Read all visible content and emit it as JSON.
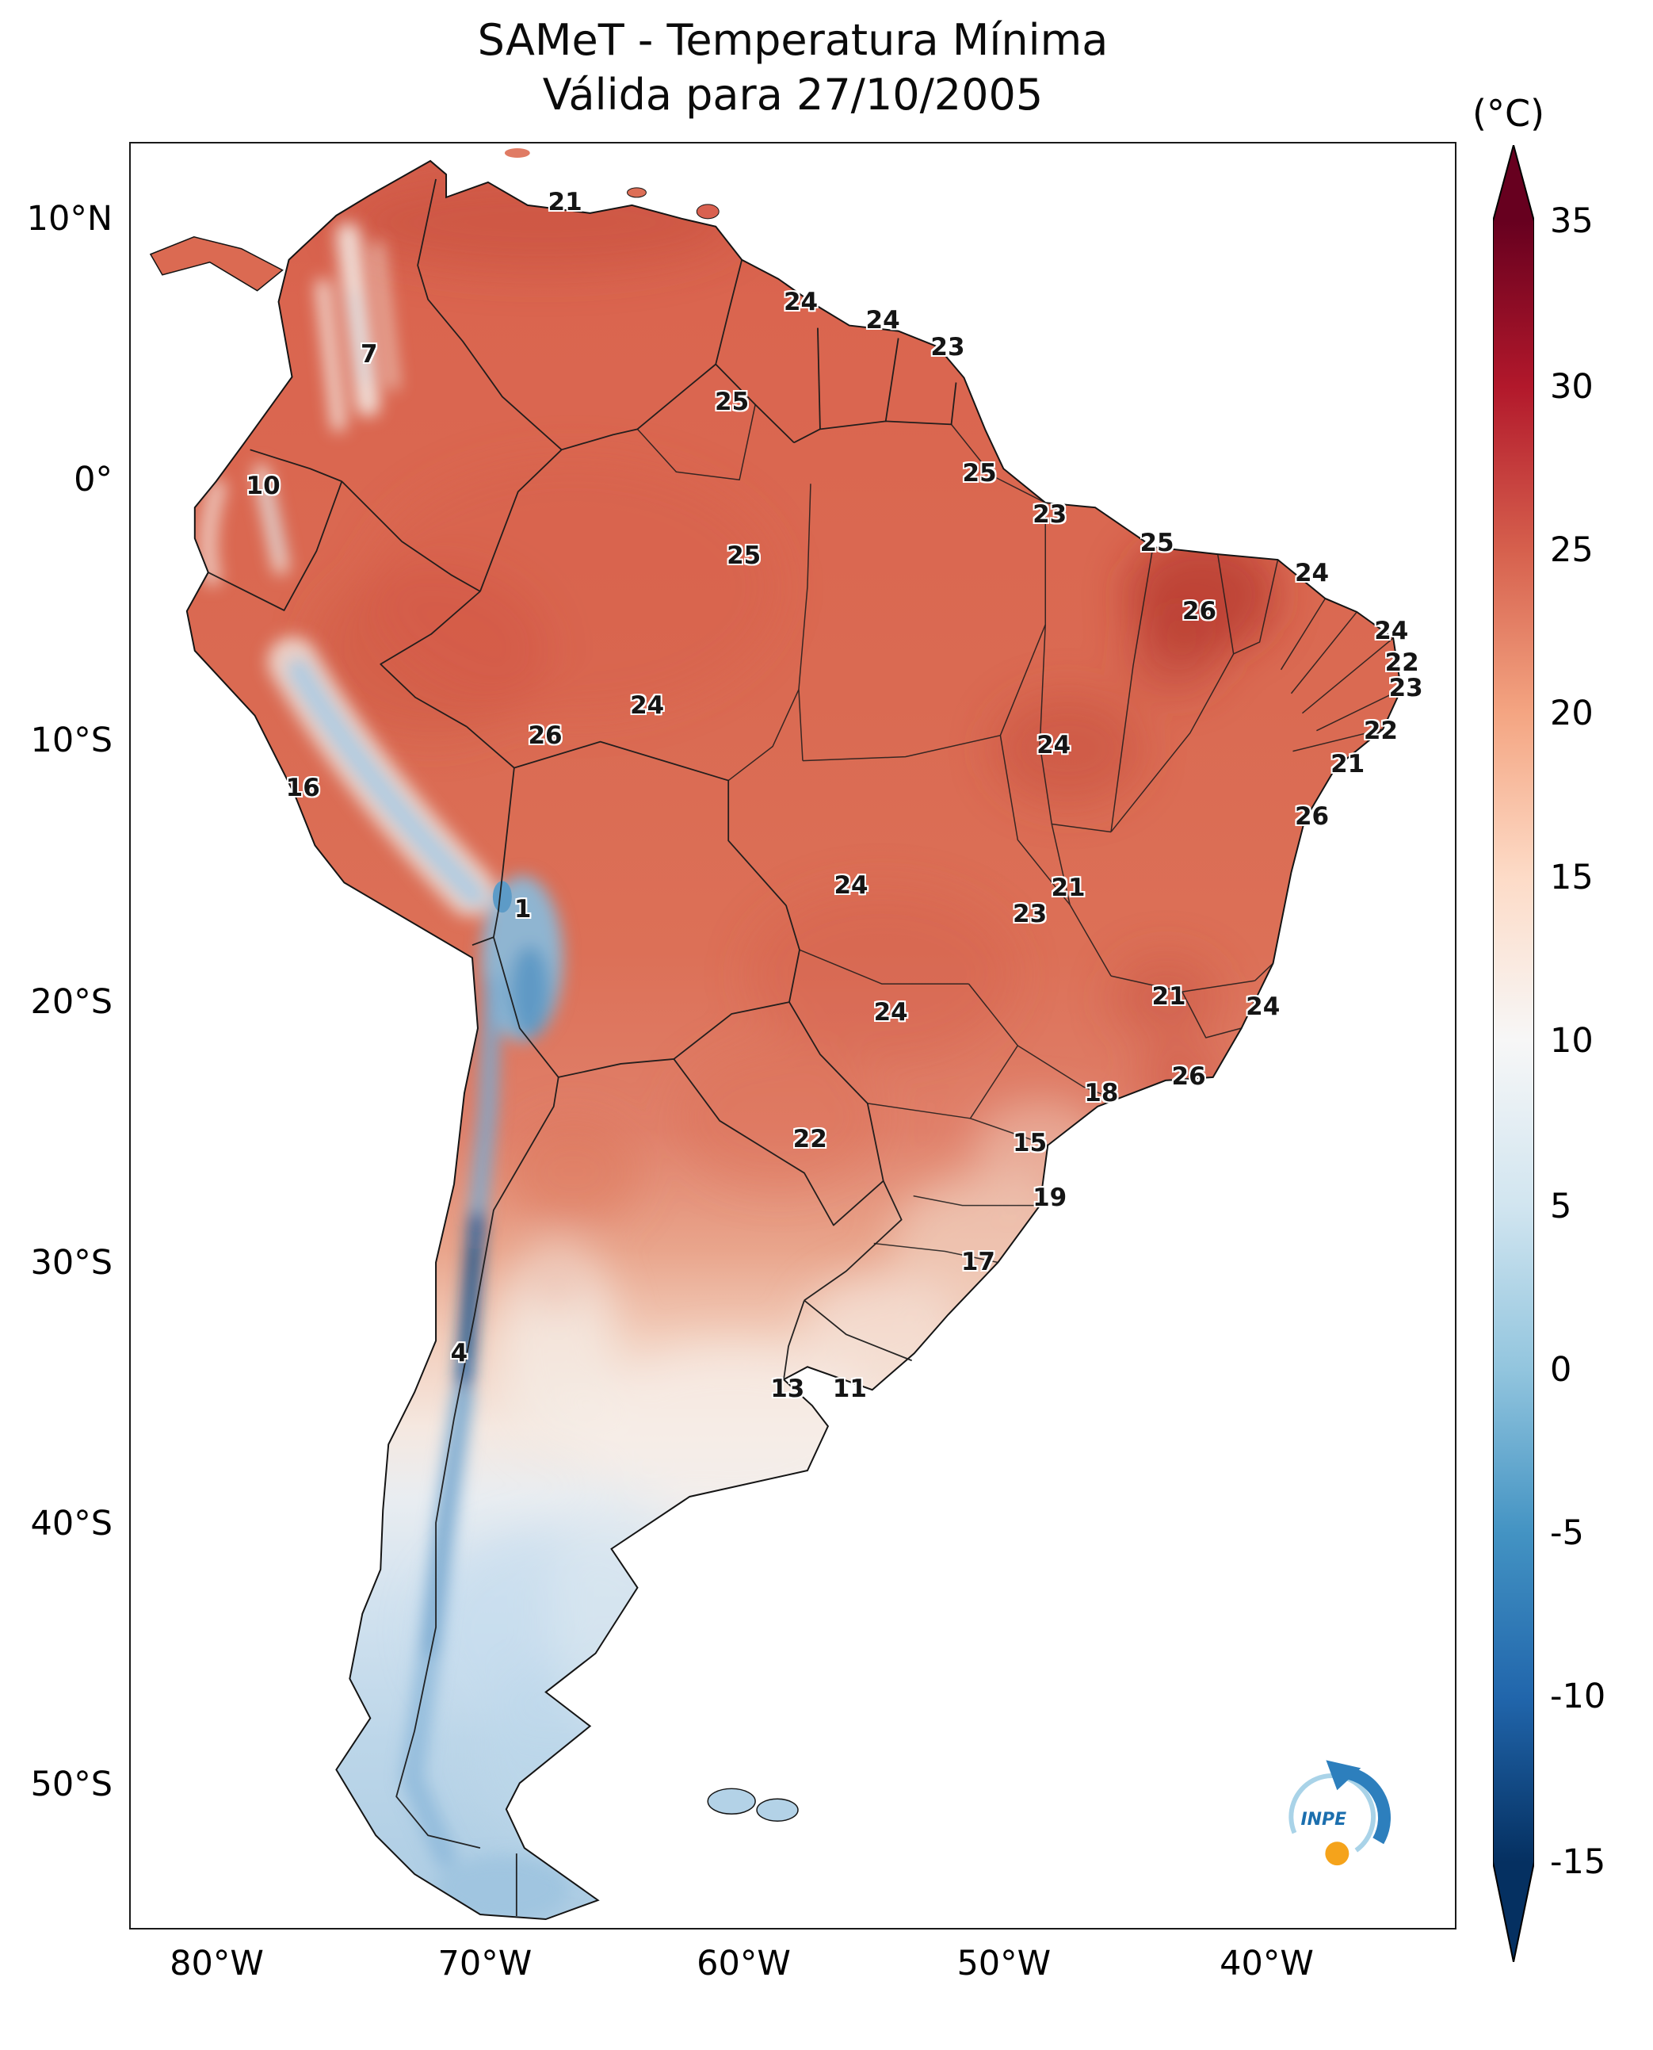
{
  "title": {
    "line1": "SAMeT - Temperatura Mínima",
    "line2": "Válida para 27/10/2005"
  },
  "colorbar": {
    "unit_label": "(°C)",
    "ticks": [
      {
        "label": "35",
        "pos_pct": 4.2
      },
      {
        "label": "30",
        "pos_pct": 13.3
      },
      {
        "label": "25",
        "pos_pct": 22.3
      },
      {
        "label": "20",
        "pos_pct": 31.3
      },
      {
        "label": "15",
        "pos_pct": 40.3
      },
      {
        "label": "10",
        "pos_pct": 49.3
      },
      {
        "label": "5",
        "pos_pct": 58.4
      },
      {
        "label": "0",
        "pos_pct": 67.4
      },
      {
        "label": "-5",
        "pos_pct": 76.4
      },
      {
        "label": "-10",
        "pos_pct": 85.4
      },
      {
        "label": "-15",
        "pos_pct": 94.5
      }
    ],
    "gradient_stops": [
      {
        "color": "#67001f",
        "pos_pct": 0
      },
      {
        "color": "#67001f",
        "pos_pct": 4.2
      },
      {
        "color": "#b2182b",
        "pos_pct": 13.3
      },
      {
        "color": "#d6604d",
        "pos_pct": 22.3
      },
      {
        "color": "#f4a582",
        "pos_pct": 31.3
      },
      {
        "color": "#fddbc7",
        "pos_pct": 40.3
      },
      {
        "color": "#f7f7f7",
        "pos_pct": 49.3
      },
      {
        "color": "#d1e5f0",
        "pos_pct": 58.4
      },
      {
        "color": "#92c5de",
        "pos_pct": 67.4
      },
      {
        "color": "#4393c3",
        "pos_pct": 76.4
      },
      {
        "color": "#2166ac",
        "pos_pct": 85.4
      },
      {
        "color": "#053061",
        "pos_pct": 94.5
      },
      {
        "color": "#053061",
        "pos_pct": 100
      }
    ]
  },
  "axes": {
    "x_ticks": [
      {
        "label": "80°W",
        "x_pct": 6.6
      },
      {
        "label": "70°W",
        "x_pct": 26.8
      },
      {
        "label": "60°W",
        "x_pct": 46.3
      },
      {
        "label": "50°W",
        "x_pct": 65.9
      },
      {
        "label": "40°W",
        "x_pct": 85.7
      }
    ],
    "y_ticks": [
      {
        "label": "10°N",
        "y_pct": 4.3
      },
      {
        "label": "0°",
        "y_pct": 18.9
      },
      {
        "label": "10°S",
        "y_pct": 33.5
      },
      {
        "label": "20°S",
        "y_pct": 48.1
      },
      {
        "label": "30°S",
        "y_pct": 62.7
      },
      {
        "label": "40°S",
        "y_pct": 77.3
      },
      {
        "label": "50°S",
        "y_pct": 91.9
      }
    ]
  },
  "logo": {
    "text": "INPE"
  },
  "chart_data": {
    "type": "heatmap",
    "title": "SAMeT - Temperatura Mínima",
    "subtitle": "Válida para 27/10/2005",
    "unit": "°C",
    "colorbar_range": [
      -15,
      35
    ],
    "colorbar_ticks": [
      35,
      30,
      25,
      20,
      15,
      10,
      5,
      0,
      -5,
      -10,
      -15
    ],
    "x_axis_ticks": [
      "80°W",
      "70°W",
      "60°W",
      "50°W",
      "40°W"
    ],
    "y_axis_ticks": [
      "10°N",
      "0°",
      "10°S",
      "20°S",
      "30°S",
      "40°S",
      "50°S"
    ],
    "station_values": [
      {
        "value": "21",
        "x_pct": 32.8,
        "y_pct": 3.3
      },
      {
        "value": "24",
        "x_pct": 50.6,
        "y_pct": 8.9
      },
      {
        "value": "24",
        "x_pct": 56.8,
        "y_pct": 9.9
      },
      {
        "value": "23",
        "x_pct": 61.7,
        "y_pct": 11.4
      },
      {
        "value": "7",
        "x_pct": 18.0,
        "y_pct": 11.8
      },
      {
        "value": "25",
        "x_pct": 45.4,
        "y_pct": 14.5
      },
      {
        "value": "25",
        "x_pct": 64.1,
        "y_pct": 18.5
      },
      {
        "value": "10",
        "x_pct": 10.0,
        "y_pct": 19.2
      },
      {
        "value": "23",
        "x_pct": 69.4,
        "y_pct": 20.8
      },
      {
        "value": "25",
        "x_pct": 77.5,
        "y_pct": 22.4
      },
      {
        "value": "25",
        "x_pct": 46.3,
        "y_pct": 23.1
      },
      {
        "value": "24",
        "x_pct": 89.2,
        "y_pct": 24.1
      },
      {
        "value": "26",
        "x_pct": 80.7,
        "y_pct": 26.2
      },
      {
        "value": "24",
        "x_pct": 95.2,
        "y_pct": 27.3
      },
      {
        "value": "22",
        "x_pct": 96.0,
        "y_pct": 29.1
      },
      {
        "value": "23",
        "x_pct": 96.3,
        "y_pct": 30.5
      },
      {
        "value": "24",
        "x_pct": 39.0,
        "y_pct": 31.5
      },
      {
        "value": "26",
        "x_pct": 31.3,
        "y_pct": 33.2
      },
      {
        "value": "22",
        "x_pct": 94.4,
        "y_pct": 32.9
      },
      {
        "value": "24",
        "x_pct": 69.7,
        "y_pct": 33.7
      },
      {
        "value": "21",
        "x_pct": 91.9,
        "y_pct": 34.8
      },
      {
        "value": "16",
        "x_pct": 13.0,
        "y_pct": 36.1
      },
      {
        "value": "26",
        "x_pct": 89.2,
        "y_pct": 37.7
      },
      {
        "value": "24",
        "x_pct": 54.4,
        "y_pct": 41.6
      },
      {
        "value": "21",
        "x_pct": 70.8,
        "y_pct": 41.7
      },
      {
        "value": "23",
        "x_pct": 67.9,
        "y_pct": 43.2
      },
      {
        "value": "1",
        "x_pct": 29.6,
        "y_pct": 42.9
      },
      {
        "value": "24",
        "x_pct": 57.4,
        "y_pct": 48.7
      },
      {
        "value": "21",
        "x_pct": 78.4,
        "y_pct": 47.8
      },
      {
        "value": "24",
        "x_pct": 85.5,
        "y_pct": 48.4
      },
      {
        "value": "26",
        "x_pct": 79.9,
        "y_pct": 52.3
      },
      {
        "value": "18",
        "x_pct": 73.3,
        "y_pct": 53.2
      },
      {
        "value": "22",
        "x_pct": 51.3,
        "y_pct": 55.8
      },
      {
        "value": "15",
        "x_pct": 67.9,
        "y_pct": 56.0
      },
      {
        "value": "19",
        "x_pct": 69.4,
        "y_pct": 59.1
      },
      {
        "value": "17",
        "x_pct": 64.0,
        "y_pct": 62.7
      },
      {
        "value": "4",
        "x_pct": 24.8,
        "y_pct": 67.8
      },
      {
        "value": "13",
        "x_pct": 49.6,
        "y_pct": 69.8
      },
      {
        "value": "11",
        "x_pct": 54.3,
        "y_pct": 69.8
      }
    ]
  }
}
